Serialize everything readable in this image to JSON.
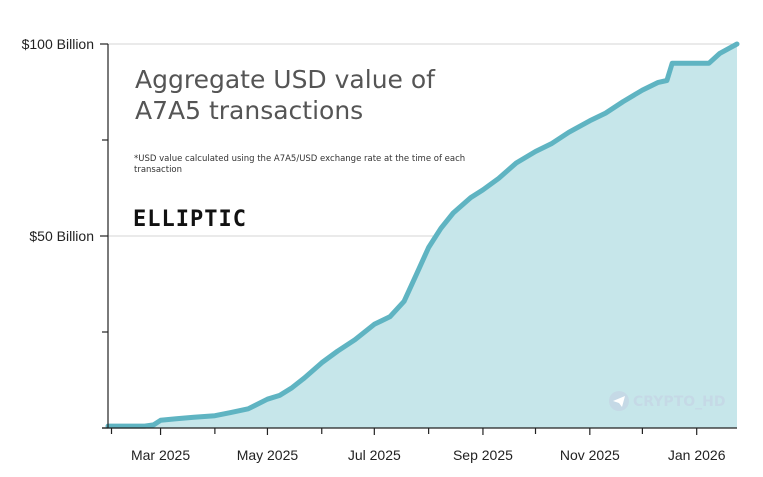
{
  "chart_data": {
    "type": "area",
    "title_lines": [
      "Aggregate USD value of",
      "A7A5 transactions"
    ],
    "note_lines": [
      "*USD value calculated using the A7A5/USD exchange rate at the time of each",
      "transaction"
    ],
    "brand": "ELLIPTIC",
    "watermark": "CRYPTO_HD",
    "ylim": [
      0,
      100
    ],
    "yticks": [
      {
        "value": 100,
        "label": "$100 Billion"
      },
      {
        "value": 50,
        "label": "$50 Billion"
      }
    ],
    "yminor": [
      0,
      25,
      75
    ],
    "xticks": [
      {
        "x": "2025-03-01",
        "label": "Mar 2025"
      },
      {
        "x": "2025-05-01",
        "label": "May 2025"
      },
      {
        "x": "2025-07-01",
        "label": "Jul 2025"
      },
      {
        "x": "2025-09-01",
        "label": "Sep 2025"
      },
      {
        "x": "2025-11-01",
        "label": "Nov 2025"
      },
      {
        "x": "2026-01-01",
        "label": "Jan 2026"
      }
    ],
    "xminor": [
      "2025-02-01",
      "2025-04-01",
      "2025-06-01",
      "2025-08-01",
      "2025-10-01",
      "2025-12-01"
    ],
    "xlim": [
      "2025-01-30",
      "2026-01-24"
    ],
    "grid": {
      "horizontal": true
    },
    "colors": {
      "line": "#5fb4c2",
      "fill": "#c6e6ea",
      "grid": "#d6d6d6",
      "axis": "#222222"
    },
    "series": [
      {
        "x": [
          "2025-01-30",
          "2025-02-10",
          "2025-02-20",
          "2025-02-25",
          "2025-03-01",
          "2025-03-10",
          "2025-03-20",
          "2025-04-01",
          "2025-04-10",
          "2025-04-20",
          "2025-05-01",
          "2025-05-08",
          "2025-05-15",
          "2025-05-22",
          "2025-06-01",
          "2025-06-10",
          "2025-06-20",
          "2025-07-01",
          "2025-07-10",
          "2025-07-18",
          "2025-07-25",
          "2025-08-01",
          "2025-08-08",
          "2025-08-15",
          "2025-08-25",
          "2025-09-01",
          "2025-09-10",
          "2025-09-20",
          "2025-10-01",
          "2025-10-10",
          "2025-10-20",
          "2025-11-01",
          "2025-11-10",
          "2025-11-20",
          "2025-12-01",
          "2025-12-10",
          "2025-12-15",
          "2025-12-18",
          "2025-12-25",
          "2026-01-01",
          "2026-01-08",
          "2026-01-14",
          "2026-01-20",
          "2026-01-24"
        ],
        "values": [
          0.5,
          0.5,
          0.5,
          0.8,
          2,
          2.4,
          2.8,
          3.2,
          4,
          5,
          7.5,
          8.5,
          10.5,
          13,
          17,
          20,
          23,
          27,
          29,
          33,
          40,
          47,
          52,
          56,
          60,
          62,
          65,
          69,
          72,
          74,
          77,
          80,
          82,
          85,
          88,
          90,
          90.5,
          95,
          95,
          95,
          95,
          97.5,
          99,
          100
        ]
      }
    ]
  }
}
